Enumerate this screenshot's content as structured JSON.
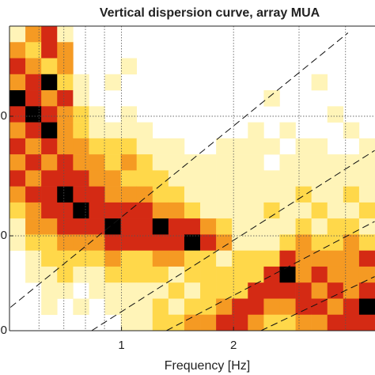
{
  "chart_data": {
    "type": "heatmap",
    "title": "Vertical dispersion curve, array MUA",
    "x_label": "Frequency [Hz]",
    "xscale": "log",
    "yscale": "log",
    "xlim": [
      0.5,
      4.8
    ],
    "ylim": [
      200,
      735
    ],
    "xticks": [
      1,
      2
    ],
    "xgrid_minor": [
      0.6,
      0.7,
      0.8,
      0.9,
      3,
      4
    ],
    "yticks": [
      {
        "value": 200,
        "label": "0"
      },
      {
        "value": 300,
        "label": "0"
      },
      {
        "value": 500,
        "label": "0"
      }
    ],
    "grid": true,
    "colors": [
      "#ffffff",
      "#fff4b8",
      "#ffd84a",
      "#f59a23",
      "#d42a14",
      "#000000"
    ],
    "guide_lines": [
      [
        [
          0.503,
          221
        ],
        [
          4.06,
          714
        ]
      ],
      [
        [
          0.831,
          200
        ],
        [
          4.79,
          432
        ]
      ],
      [
        [
          1.32,
          200
        ],
        [
          4.79,
          319
        ]
      ],
      [
        [
          2.37,
          200
        ],
        [
          4.79,
          252
        ]
      ]
    ],
    "values": [
      [
        1,
        3,
        4,
        1,
        0,
        0,
        0,
        0,
        0,
        0,
        0,
        0,
        0,
        0,
        0,
        0,
        0,
        0,
        0,
        0,
        0,
        0,
        0
      ],
      [
        3,
        2,
        4,
        3,
        0,
        0,
        0,
        0,
        0,
        0,
        0,
        0,
        0,
        0,
        0,
        0,
        0,
        0,
        0,
        0,
        0,
        0,
        0
      ],
      [
        4,
        3,
        2,
        3,
        0,
        0,
        0,
        1,
        0,
        0,
        0,
        0,
        0,
        0,
        0,
        0,
        0,
        0,
        0,
        0,
        0,
        0,
        0
      ],
      [
        3,
        4,
        5,
        2,
        1,
        0,
        1,
        0,
        0,
        0,
        0,
        0,
        0,
        0,
        0,
        0,
        0,
        0,
        0,
        1,
        0,
        0,
        0
      ],
      [
        5,
        4,
        3,
        4,
        1,
        0,
        0,
        0,
        0,
        0,
        0,
        0,
        0,
        0,
        0,
        0,
        1,
        0,
        0,
        0,
        0,
        0,
        0
      ],
      [
        4,
        5,
        4,
        3,
        2,
        1,
        0,
        1,
        0,
        0,
        0,
        0,
        0,
        0,
        0,
        0,
        0,
        0,
        0,
        0,
        1,
        0,
        0
      ],
      [
        3,
        4,
        5,
        3,
        2,
        1,
        1,
        1,
        1,
        0,
        0,
        0,
        0,
        0,
        0,
        1,
        0,
        1,
        0,
        0,
        0,
        1,
        0
      ],
      [
        4,
        3,
        4,
        3,
        3,
        2,
        2,
        2,
        1,
        1,
        1,
        0,
        0,
        1,
        1,
        1,
        1,
        0,
        1,
        1,
        0,
        0,
        1
      ],
      [
        3,
        4,
        3,
        4,
        3,
        3,
        2,
        3,
        2,
        1,
        1,
        1,
        1,
        1,
        1,
        1,
        0,
        1,
        1,
        1,
        1,
        1,
        1
      ],
      [
        4,
        3,
        4,
        4,
        4,
        3,
        3,
        2,
        2,
        2,
        1,
        1,
        1,
        1,
        1,
        1,
        1,
        1,
        1,
        1,
        1,
        1,
        1
      ],
      [
        3,
        4,
        4,
        5,
        4,
        4,
        3,
        3,
        3,
        2,
        2,
        1,
        1,
        1,
        1,
        1,
        1,
        1,
        2,
        1,
        1,
        2,
        1
      ],
      [
        2,
        3,
        4,
        4,
        5,
        4,
        4,
        4,
        4,
        3,
        3,
        2,
        1,
        1,
        1,
        1,
        2,
        1,
        1,
        2,
        1,
        1,
        2
      ],
      [
        1,
        3,
        3,
        4,
        4,
        4,
        5,
        4,
        4,
        5,
        4,
        4,
        3,
        2,
        1,
        1,
        1,
        1,
        2,
        1,
        2,
        2,
        1
      ],
      [
        1,
        2,
        2,
        3,
        3,
        3,
        4,
        4,
        4,
        4,
        4,
        5,
        4,
        3,
        1,
        1,
        1,
        2,
        3,
        2,
        2,
        3,
        2
      ],
      [
        0,
        1,
        2,
        2,
        2,
        2,
        3,
        2,
        2,
        3,
        3,
        2,
        2,
        1,
        2,
        2,
        2,
        4,
        3,
        3,
        3,
        3,
        4
      ],
      [
        0,
        1,
        1,
        2,
        1,
        1,
        2,
        2,
        2,
        2,
        1,
        2,
        2,
        2,
        2,
        2,
        4,
        5,
        3,
        4,
        3,
        3,
        3
      ],
      [
        0,
        0,
        1,
        1,
        0,
        1,
        1,
        1,
        1,
        1,
        2,
        1,
        2,
        2,
        2,
        4,
        4,
        4,
        4,
        3,
        4,
        3,
        4
      ],
      [
        0,
        0,
        1,
        0,
        1,
        0,
        1,
        1,
        1,
        2,
        1,
        2,
        2,
        3,
        4,
        4,
        3,
        3,
        4,
        4,
        3,
        4,
        5
      ],
      [
        0,
        0,
        0,
        0,
        0,
        0,
        0,
        1,
        1,
        2,
        2,
        3,
        3,
        4,
        4,
        3,
        2,
        2,
        3,
        3,
        4,
        4,
        4
      ]
    ]
  }
}
